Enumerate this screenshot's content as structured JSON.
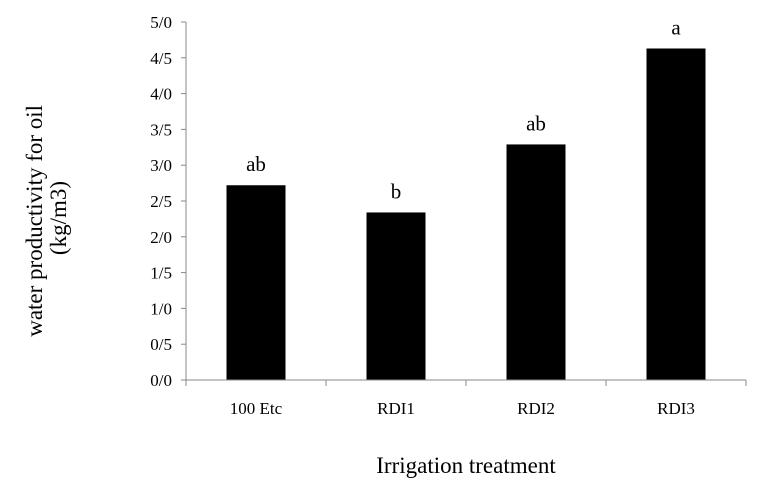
{
  "chart_data": {
    "type": "bar",
    "categories": [
      "100 Etc",
      "RDI1",
      "RDI2",
      "RDI3"
    ],
    "values": [
      2.72,
      2.34,
      3.29,
      4.63
    ],
    "data_labels": [
      "ab",
      "b",
      "ab",
      "a"
    ],
    "title": "",
    "xlabel": "Irrigation  treatment",
    "ylabel_lines": [
      "water productivity  for oil",
      "(kg/m3)"
    ],
    "ylim": [
      0,
      5
    ],
    "y_ticks": [
      0,
      0.5,
      1,
      1.5,
      2,
      2.5,
      3,
      3.5,
      4,
      4.5,
      5
    ],
    "y_tick_labels": [
      "0/0",
      "0/5",
      "1/0",
      "1/5",
      "2/0",
      "2/5",
      "3/0",
      "3/5",
      "4/0",
      "4/5",
      "5/0"
    ],
    "bar_color": "#000000",
    "grid": false,
    "legend": "none"
  }
}
